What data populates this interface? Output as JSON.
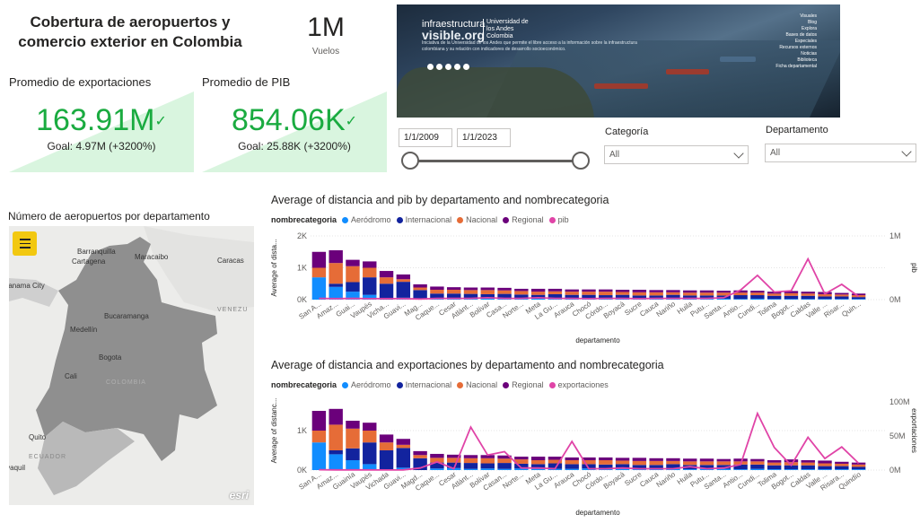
{
  "title": "Cobertura de aeropuertos y comercio exterior en Colombia",
  "vuelos": {
    "value": "1M",
    "label": "Vuelos"
  },
  "kpi_exportaciones": {
    "title": "Promedio de exportaciones",
    "value": "163.91M",
    "check": "✓",
    "goal": "Goal: 4.97M (+3200%)"
  },
  "kpi_pib": {
    "title": "Promedio de PIB",
    "value": "854.06K",
    "check": "✓",
    "goal": "Goal: 25.88K (+3200%)"
  },
  "banner": {
    "logo_line1": "infraestructura",
    "logo_line2": "visible.org",
    "university": [
      "Universidad de",
      "los Andes",
      "Colombia"
    ],
    "description": "Iniciativa de la Universidad de los Andes que permite el libre acceso a la información sobre la infraestructura colombiana y su relación con indicadores de desarrollo socioeconómico.",
    "menu": [
      "Visuales",
      "Blog",
      "Explora",
      "Bases de datos",
      "Especiales",
      "Recursos externos",
      "Noticias",
      "Biblioteca",
      "Ficha departamental"
    ]
  },
  "date_filter": {
    "start": "1/1/2009",
    "end": "1/1/2023"
  },
  "slicers": {
    "categoria": {
      "label": "Categoría",
      "value": "All"
    },
    "departamento": {
      "label": "Departamento",
      "value": "All"
    }
  },
  "map": {
    "title": "Número de aeropuertos por departamento",
    "cities": [
      "Barranquilla",
      "Maracaibo",
      "Cartagena",
      "Caracas",
      "Panama City",
      "Bucaramanga",
      "Medellín",
      "Bogota",
      "Cali",
      "Quito",
      "Guayaquil"
    ],
    "countries": [
      "VENEZU",
      "COLOMBIA",
      "ECUADOR"
    ],
    "attribution": "esri"
  },
  "colors": {
    "aerodromo": "#118dff",
    "internacional": "#12239e",
    "nacional": "#e66c37",
    "regional": "#6b007b",
    "line": "#e044a7",
    "kpi": "#1aab40",
    "kpi_bg": "#d9f5df"
  },
  "legend": {
    "field": "nombrecategoria",
    "items": [
      "Aeródromo",
      "Internacional",
      "Nacional",
      "Regional"
    ]
  },
  "chart_data": [
    {
      "type": "bar",
      "title": "Average of distancia and pib by departamento and nombrecategoria",
      "xlabel": "departamento",
      "ylabel": "Average of dista...",
      "y2label": "pib",
      "line_series": "pib",
      "y_ticks": [
        "0K",
        "1K",
        "2K"
      ],
      "y2_ticks": [
        "0M",
        "1M"
      ],
      "ylim": [
        0,
        2000
      ],
      "y2lim": [
        0,
        1000000
      ],
      "categories": [
        "San A...",
        "Amaz...",
        "Guai...",
        "Vaupés",
        "Vicha...",
        "Guavi...",
        "Mag...",
        "Caque...",
        "Cesar",
        "Atlánt...",
        "Bolívar",
        "Casa...",
        "Norte...",
        "Meta",
        "La Gu...",
        "Arauca",
        "Chocó",
        "Córdo...",
        "Boyacá",
        "Sucre",
        "Cauca",
        "Nariño",
        "Huila",
        "Putu...",
        "Santa...",
        "Antio...",
        "Cundi...",
        "Tolima",
        "Bogot...",
        "Caldas",
        "Valle ...",
        "Risar...",
        "Quin..."
      ],
      "series": [
        {
          "name": "Aeródromo",
          "values": [
            700,
            400,
            250,
            150,
            0,
            60,
            0,
            40,
            50,
            30,
            40,
            30,
            40,
            30,
            30,
            30,
            40,
            30,
            30,
            20,
            30,
            30,
            20,
            30,
            30,
            20,
            30,
            20,
            20,
            20,
            20,
            20,
            20
          ]
        },
        {
          "name": "Internacional",
          "values": [
            0,
            100,
            300,
            550,
            500,
            500,
            300,
            150,
            140,
            150,
            130,
            150,
            120,
            120,
            140,
            120,
            110,
            110,
            120,
            110,
            100,
            120,
            110,
            100,
            100,
            120,
            110,
            100,
            100,
            100,
            80,
            80,
            60
          ]
        },
        {
          "name": "Nacional",
          "values": [
            300,
            650,
            500,
            300,
            200,
            80,
            80,
            120,
            120,
            120,
            130,
            110,
            110,
            100,
            90,
            100,
            100,
            110,
            90,
            100,
            100,
            80,
            90,
            90,
            90,
            80,
            80,
            70,
            80,
            70,
            70,
            60,
            60
          ]
        },
        {
          "name": "Regional",
          "values": [
            500,
            400,
            200,
            200,
            200,
            150,
            100,
            100,
            80,
            80,
            80,
            80,
            70,
            90,
            80,
            70,
            70,
            70,
            70,
            80,
            70,
            70,
            70,
            70,
            60,
            70,
            60,
            60,
            70,
            60,
            70,
            50,
            50
          ]
        },
        {
          "name": "pib",
          "values": [
            20000,
            15000,
            20000,
            15000,
            15000,
            15000,
            10000,
            20000,
            20000,
            20000,
            30000,
            20000,
            20000,
            30000,
            20000,
            20000,
            15000,
            20000,
            20000,
            15000,
            20000,
            20000,
            20000,
            20000,
            30000,
            150000,
            380000,
            120000,
            140000,
            640000,
            90000,
            240000,
            50000
          ]
        }
      ]
    },
    {
      "type": "bar",
      "title": "Average of distancia and exportaciones by departamento and nombrecategoria",
      "xlabel": "departamento",
      "ylabel": "Average of distanc...",
      "y2label": "exportaciones",
      "line_series": "exportaciones",
      "y_ticks": [
        "0K",
        "1K"
      ],
      "y2_ticks": [
        "0M",
        "50M",
        "100M"
      ],
      "ylim": [
        0,
        2000
      ],
      "y2lim": [
        0,
        100000000
      ],
      "categories": [
        "San A...",
        "Amaz...",
        "Guainía",
        "Vaupés",
        "Vichada",
        "Guavi...",
        "Magd...",
        "Caque...",
        "Cesar",
        "Atlánt...",
        "Bolívar",
        "Casan...",
        "Norte...",
        "Meta",
        "La Gu...",
        "Arauca",
        "Chocó",
        "Córdo...",
        "Boyacá",
        "Sucre",
        "Cauca",
        "Nariño",
        "Huila",
        "Putu...",
        "Santa...",
        "Antio...",
        "Cundi...",
        "Tolima",
        "Bogot...",
        "Caldas",
        "Valle ...",
        "Risara...",
        "Quindío"
      ],
      "series": [
        {
          "name": "Aeródromo",
          "values": [
            700,
            400,
            250,
            150,
            0,
            60,
            0,
            40,
            50,
            30,
            40,
            30,
            40,
            30,
            30,
            30,
            40,
            30,
            30,
            20,
            30,
            30,
            20,
            30,
            30,
            20,
            30,
            20,
            20,
            20,
            20,
            20,
            20
          ]
        },
        {
          "name": "Internacional",
          "values": [
            0,
            100,
            300,
            550,
            500,
            500,
            300,
            150,
            140,
            150,
            130,
            150,
            120,
            120,
            140,
            120,
            110,
            110,
            120,
            110,
            100,
            120,
            110,
            100,
            100,
            120,
            110,
            100,
            100,
            100,
            80,
            80,
            60
          ]
        },
        {
          "name": "Nacional",
          "values": [
            300,
            650,
            500,
            300,
            200,
            80,
            80,
            120,
            120,
            120,
            130,
            110,
            110,
            100,
            90,
            100,
            100,
            110,
            90,
            100,
            100,
            80,
            90,
            90,
            90,
            80,
            80,
            70,
            80,
            70,
            70,
            60,
            60
          ]
        },
        {
          "name": "Regional",
          "values": [
            500,
            400,
            200,
            200,
            200,
            150,
            100,
            100,
            80,
            80,
            80,
            80,
            70,
            90,
            80,
            70,
            70,
            70,
            70,
            80,
            70,
            70,
            70,
            70,
            60,
            70,
            60,
            60,
            70,
            60,
            70,
            50,
            50
          ]
        },
        {
          "name": "exportaciones",
          "values": [
            500000,
            200000,
            200000,
            200000,
            100000,
            300000,
            3000000,
            12000000,
            2000000,
            63000000,
            22000000,
            27000000,
            3000000,
            3000000,
            2000000,
            42000000,
            2000000,
            2000000,
            3000000,
            2000000,
            2000000,
            2000000,
            5000000,
            2000000,
            3000000,
            8000000,
            83000000,
            33000000,
            7000000,
            48000000,
            17000000,
            34000000,
            10000000
          ]
        }
      ]
    }
  ]
}
